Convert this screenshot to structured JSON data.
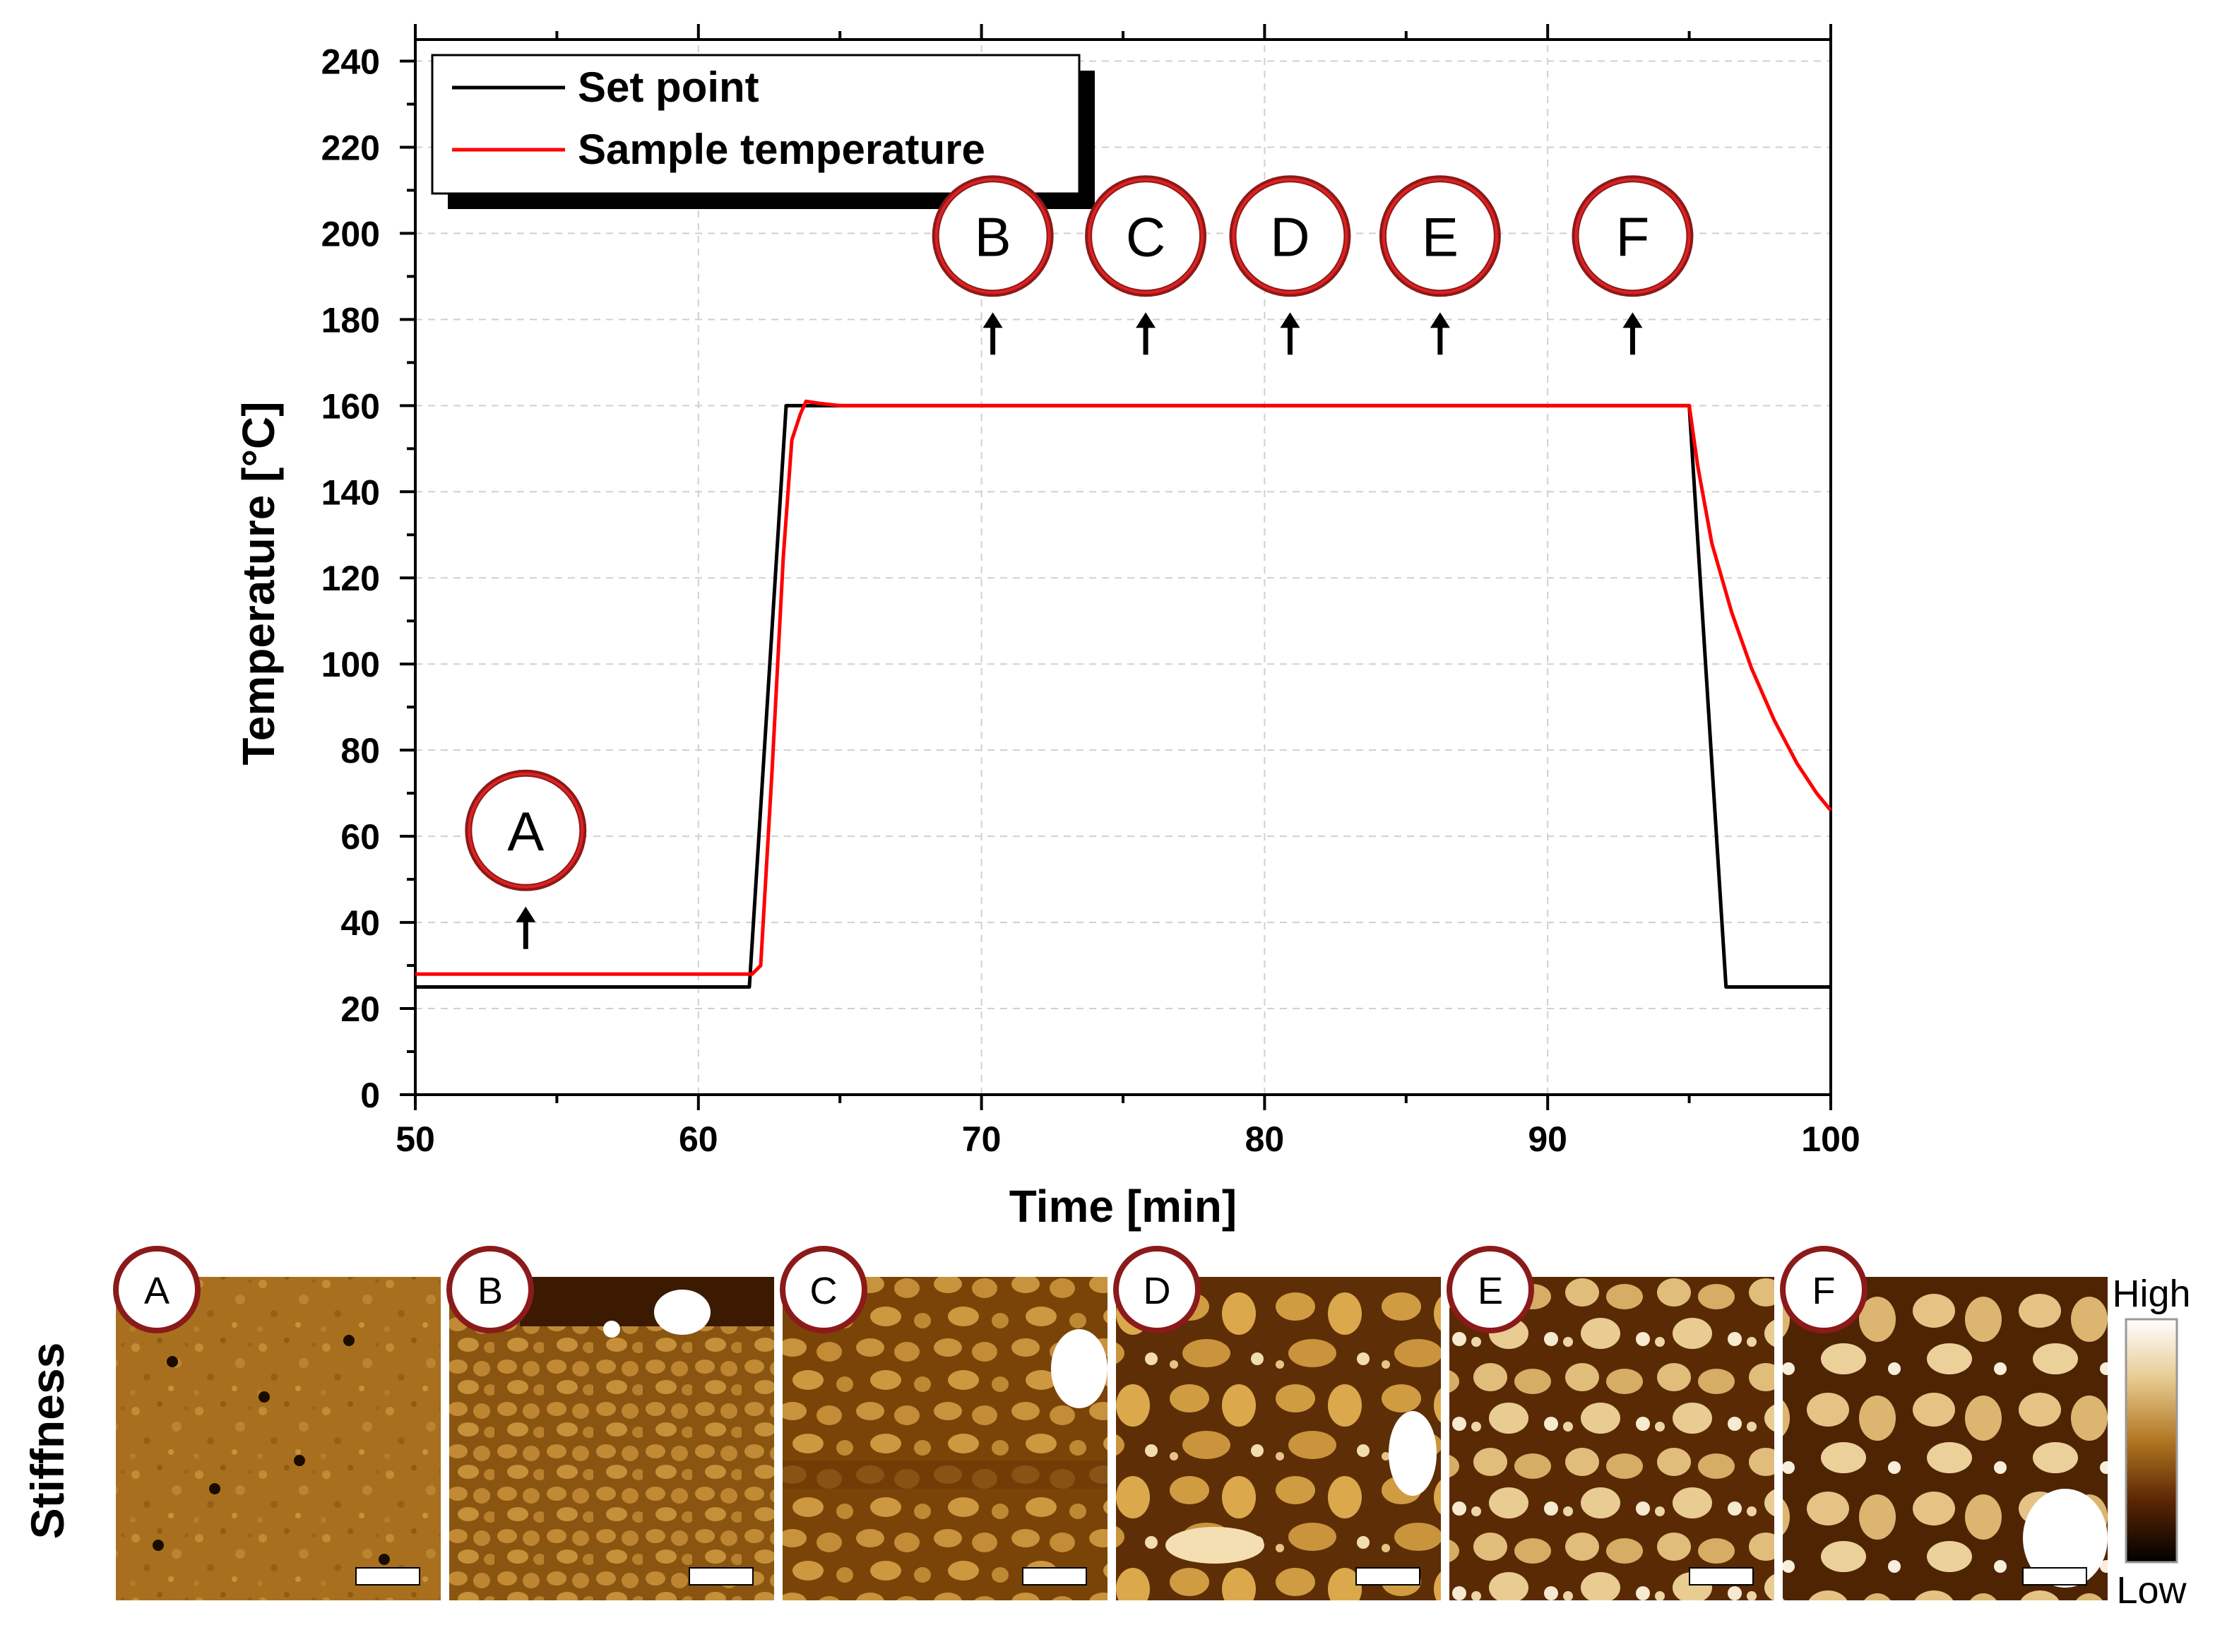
{
  "chart_data": {
    "type": "line",
    "xlabel": "Time [min]",
    "ylabel": "Temperature [°C]",
    "xlim": [
      50,
      100
    ],
    "ylim": [
      0,
      245
    ],
    "x_ticks": [
      50,
      60,
      70,
      80,
      90,
      100
    ],
    "x_tick_labels": [
      "50",
      "60",
      "70",
      "80",
      "90",
      "100"
    ],
    "y_ticks": [
      0,
      20,
      40,
      60,
      80,
      100,
      120,
      140,
      160,
      180,
      200,
      220,
      240
    ],
    "y_tick_labels": [
      "0",
      "20",
      "40",
      "60",
      "80",
      "100",
      "120",
      "140",
      "160",
      "180",
      "200",
      "220",
      "240"
    ],
    "grid": true,
    "legend_position": "top-left",
    "series": [
      {
        "name": "Set point",
        "color": "#000000",
        "x": [
          50,
          61.8,
          63.1,
          95.0,
          96.3,
          100
        ],
        "y": [
          25,
          25,
          160,
          160,
          25,
          25
        ]
      },
      {
        "name": "Sample temperature",
        "color": "#ff0000",
        "x": [
          50,
          61.9,
          62.2,
          62.6,
          63.0,
          63.3,
          63.6,
          63.8,
          64.3,
          65.0,
          70,
          80,
          90,
          95.0,
          95.3,
          95.8,
          96.5,
          97.2,
          98.0,
          98.8,
          99.5,
          100
        ],
        "y": [
          28,
          28,
          30,
          75,
          125,
          152,
          158,
          161,
          160.5,
          160,
          160,
          160,
          160,
          160,
          146,
          128,
          112,
          99,
          87,
          77,
          70,
          66
        ]
      }
    ],
    "annotations": [
      {
        "label": "A",
        "x": 53.9,
        "arrow_tip": 43
      },
      {
        "label": "B",
        "x": 70.4,
        "arrow_tip": 181
      },
      {
        "label": "C",
        "x": 75.8,
        "arrow_tip": 181
      },
      {
        "label": "D",
        "x": 80.9,
        "arrow_tip": 181
      },
      {
        "label": "E",
        "x": 86.2,
        "arrow_tip": 181
      },
      {
        "label": "F",
        "x": 93.0,
        "arrow_tip": 181
      }
    ]
  },
  "panels": {
    "row_label": "Stiffness",
    "labels": [
      "A",
      "B",
      "C",
      "D",
      "E",
      "F"
    ]
  },
  "colorbar": {
    "high_label": "High",
    "low_label": "Low"
  }
}
